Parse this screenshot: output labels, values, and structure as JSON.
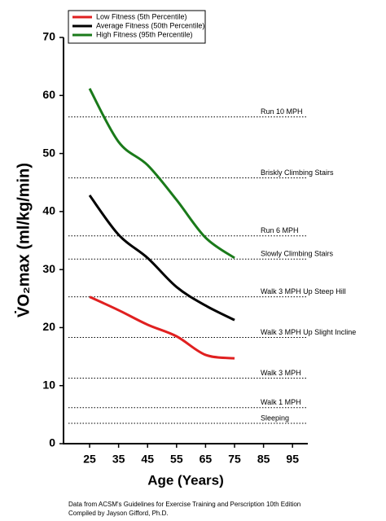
{
  "chart_data": {
    "type": "line",
    "x_label": "Age (Years)",
    "y_label": "V̇O₂max (ml/kg/min)",
    "x": [
      25,
      35,
      45,
      55,
      65,
      75
    ],
    "series": [
      {
        "name": "Low Fitness (5th Percentile)",
        "color": "#e02020",
        "values": [
          25.3,
          23,
          20.5,
          18.5,
          15.3,
          14.7
        ]
      },
      {
        "name": "Average Fitness (50th Percentile)",
        "color": "#000000",
        "values": [
          42.8,
          36,
          32,
          27,
          23.8,
          21.3
        ]
      },
      {
        "name": "High Fitness (95th Percentile)",
        "color": "#1a7a1a",
        "values": [
          61.2,
          52,
          48,
          42,
          35.5,
          32
        ]
      }
    ],
    "xlim": [
      16,
      100
    ],
    "xticks": [
      25,
      35,
      45,
      55,
      65,
      75,
      85,
      95
    ],
    "ylim": [
      0,
      70
    ],
    "yticks": [
      0,
      10,
      20,
      30,
      40,
      50,
      60,
      70
    ],
    "legend": "upper left",
    "reference_lines": [
      {
        "label": "Run 10 MPH",
        "value": 56.3
      },
      {
        "label": "Briskly Climbing Stairs",
        "value": 45.8
      },
      {
        "label": "Run 6 MPH",
        "value": 35.8
      },
      {
        "label": "Slowly Climbing Stairs",
        "value": 31.8
      },
      {
        "label": "Walk 3 MPH Up Steep Hill",
        "value": 25.3
      },
      {
        "label": "Walk 3 MPH Up Slight Incline",
        "value": 18.3
      },
      {
        "label": "Walk 3 MPH",
        "value": 11.3
      },
      {
        "label": "Walk 1 MPH",
        "value": 6.2
      },
      {
        "label": "Sleeping",
        "value": 3.5
      }
    ],
    "footnote": [
      "Data from ACSM's Guidelines for Exercise Training and Perscription 10th Edition",
      "Compiled by Jayson Gifford, Ph.D."
    ]
  }
}
